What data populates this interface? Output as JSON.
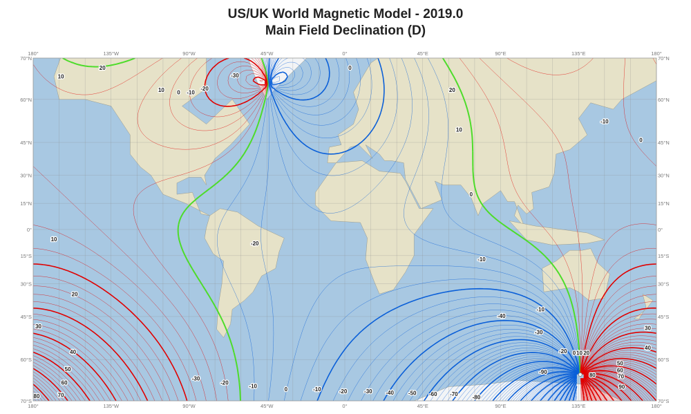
{
  "title": "US/UK World Magnetic Model - 2019.0",
  "subtitle": "Main Field Declination (D)",
  "map": {
    "projection": "mercator",
    "lon_range": [
      -180,
      180
    ],
    "lat_range": [
      -70,
      70
    ],
    "contour_interval_deg": 2,
    "major_interval_deg": 10,
    "colors": {
      "positive": "#e00000",
      "negative": "#0a5fd8",
      "zero": "#4ddc2a",
      "ocean": "#a8c8e2",
      "land": "#e6e2c8",
      "grid": "#8a8a8a"
    }
  },
  "lon_ticks": [
    "180°",
    "135°W",
    "90°W",
    "45°W",
    "0°",
    "45°E",
    "90°E",
    "135°E",
    "180°"
  ],
  "lat_ticks_left": [
    "70°N",
    "60°N",
    "45°N",
    "30°N",
    "15°N",
    "0°",
    "15°S",
    "30°S",
    "45°S",
    "60°S",
    "70°S"
  ],
  "lat_ticks_right": [
    "70°N",
    "60°N",
    "45°N",
    "30°N",
    "15°N",
    "0°",
    "15°S",
    "30°S",
    "45°S",
    "60°S",
    "70°S"
  ],
  "contour_labels": [
    {
      "text": "20",
      "lon": -140,
      "lat": 68
    },
    {
      "text": "10",
      "lon": -164,
      "lat": 66
    },
    {
      "text": "10",
      "lon": -106,
      "lat": 62.7
    },
    {
      "text": "0",
      "lon": -96,
      "lat": 62
    },
    {
      "text": "-10",
      "lon": -89,
      "lat": 62
    },
    {
      "text": "-20",
      "lon": -81,
      "lat": 63
    },
    {
      "text": "-30",
      "lon": -63.5,
      "lat": 66.3
    },
    {
      "text": "0",
      "lon": 3,
      "lat": 68
    },
    {
      "text": "20",
      "lon": 62,
      "lat": 62.7
    },
    {
      "text": "10",
      "lon": 66,
      "lat": 50
    },
    {
      "text": "-10",
      "lon": 150,
      "lat": 53
    },
    {
      "text": "0",
      "lon": 171,
      "lat": 46
    },
    {
      "text": "0",
      "lon": 73,
      "lat": 20
    },
    {
      "text": "-20",
      "lon": -52,
      "lat": -8
    },
    {
      "text": "-10",
      "lon": 79,
      "lat": -17
    },
    {
      "text": "10",
      "lon": -168,
      "lat": -5.6
    },
    {
      "text": "20",
      "lon": -156,
      "lat": -35
    },
    {
      "text": "30",
      "lon": -177,
      "lat": -48.8
    },
    {
      "text": "40",
      "lon": -157,
      "lat": -57.7
    },
    {
      "text": "50",
      "lon": -160,
      "lat": -62.7
    },
    {
      "text": "60",
      "lon": -162,
      "lat": -66
    },
    {
      "text": "70",
      "lon": -164,
      "lat": -68.8
    },
    {
      "text": "80",
      "lon": -178,
      "lat": -69
    },
    {
      "text": "-30",
      "lon": -86,
      "lat": -65
    },
    {
      "text": "-20",
      "lon": -69.5,
      "lat": -66
    },
    {
      "text": "-10",
      "lon": -53,
      "lat": -66.8
    },
    {
      "text": "0",
      "lon": -34,
      "lat": -67.5
    },
    {
      "text": "-10",
      "lon": -16,
      "lat": -67.5
    },
    {
      "text": "-20",
      "lon": -1,
      "lat": -68
    },
    {
      "text": "-30",
      "lon": 13.5,
      "lat": -68
    },
    {
      "text": "-40",
      "lon": 26,
      "lat": -68.3
    },
    {
      "text": "-50",
      "lon": 39,
      "lat": -68.4
    },
    {
      "text": "-60",
      "lon": 51,
      "lat": -68.6
    },
    {
      "text": "-70",
      "lon": 63,
      "lat": -68.6
    },
    {
      "text": "-80",
      "lon": 76,
      "lat": -69.2
    },
    {
      "text": "-90",
      "lon": 114.5,
      "lat": -63.4
    },
    {
      "text": "-40",
      "lon": 90.5,
      "lat": -44.7
    },
    {
      "text": "-30",
      "lon": 112,
      "lat": -51
    },
    {
      "text": "-20",
      "lon": 126,
      "lat": -57.5
    },
    {
      "text": "-10",
      "lon": 113,
      "lat": -42
    },
    {
      "text": "0",
      "lon": 132.5,
      "lat": -58
    },
    {
      "text": "10",
      "lon": 135.5,
      "lat": -58
    },
    {
      "text": "20",
      "lon": 139.6,
      "lat": -58
    },
    {
      "text": "30",
      "lon": 175,
      "lat": -49.5
    },
    {
      "text": "40",
      "lon": 175,
      "lat": -56.4
    },
    {
      "text": "50",
      "lon": 159,
      "lat": -61
    },
    {
      "text": "60",
      "lon": 159,
      "lat": -62.9
    },
    {
      "text": "70",
      "lon": 159.5,
      "lat": -64.5
    },
    {
      "text": "80",
      "lon": 143,
      "lat": -64.2
    },
    {
      "text": "90",
      "lon": 160,
      "lat": -67
    }
  ]
}
